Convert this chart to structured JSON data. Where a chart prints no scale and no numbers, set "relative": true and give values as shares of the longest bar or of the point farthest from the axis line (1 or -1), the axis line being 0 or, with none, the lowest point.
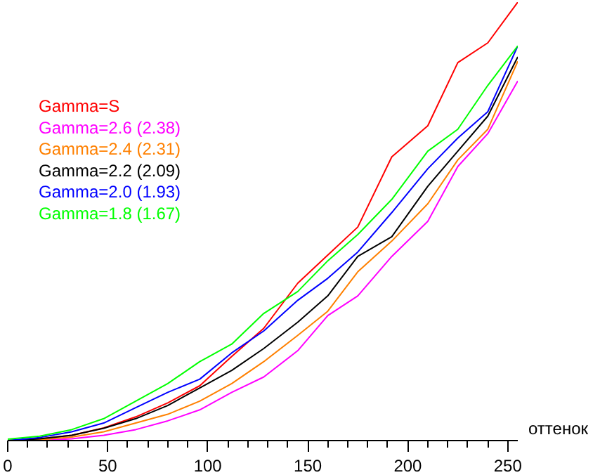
{
  "chart_data": {
    "type": "line",
    "relative": true,
    "xlabel": "оттенок",
    "x": [
      0,
      16,
      32,
      48,
      64,
      80,
      96,
      112,
      128,
      145,
      160,
      175,
      192,
      210,
      225,
      240,
      255
    ],
    "xlim": [
      0,
      255
    ],
    "xticks": [
      0,
      50,
      100,
      150,
      200,
      250
    ],
    "legend": "left",
    "grid": false,
    "series": [
      {
        "name": "Gamma=S",
        "color": "#ff0000",
        "values": [
          0,
          0.004,
          0.012,
          0.029,
          0.054,
          0.086,
          0.125,
          0.192,
          0.256,
          0.359,
          0.423,
          0.487,
          0.647,
          0.718,
          0.862,
          0.907,
          1.0
        ]
      },
      {
        "name": "Gamma=2.6 (2.38)",
        "color": "#ff00ff",
        "values": [
          0,
          0,
          0.004,
          0.012,
          0.025,
          0.045,
          0.07,
          0.11,
          0.145,
          0.205,
          0.285,
          0.33,
          0.42,
          0.5,
          0.625,
          0.7,
          0.82
        ]
      },
      {
        "name": "Gamma=2.4 (2.31)",
        "color": "#ff8000",
        "values": [
          0,
          0.002,
          0.008,
          0.02,
          0.04,
          0.06,
          0.09,
          0.13,
          0.18,
          0.24,
          0.295,
          0.385,
          0.455,
          0.54,
          0.64,
          0.71,
          0.865
        ]
      },
      {
        "name": "Gamma=2.2 (2.09)",
        "color": "#000000",
        "values": [
          0,
          0.004,
          0.012,
          0.028,
          0.05,
          0.08,
          0.12,
          0.16,
          0.21,
          0.27,
          0.33,
          0.42,
          0.465,
          0.58,
          0.66,
          0.74,
          0.875
        ]
      },
      {
        "name": "Gamma=2.0 (1.93)",
        "color": "#0000ff",
        "values": [
          0,
          0.007,
          0.02,
          0.04,
          0.075,
          0.11,
          0.14,
          0.2,
          0.25,
          0.32,
          0.37,
          0.43,
          0.52,
          0.62,
          0.69,
          0.75,
          0.9
        ]
      },
      {
        "name": "Gamma=1.8 (1.67)",
        "color": "#00ff00",
        "values": [
          0.003,
          0.01,
          0.025,
          0.05,
          0.09,
          0.13,
          0.18,
          0.22,
          0.29,
          0.34,
          0.41,
          0.47,
          0.55,
          0.66,
          0.71,
          0.81,
          0.9
        ]
      }
    ]
  }
}
